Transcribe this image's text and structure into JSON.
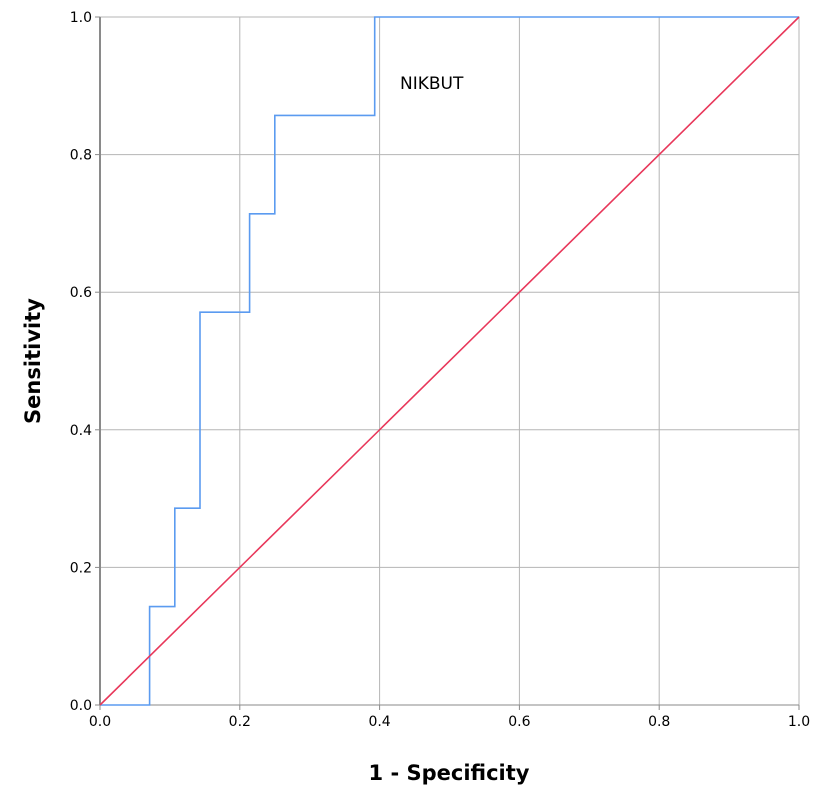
{
  "chart_data": {
    "type": "line",
    "title": "",
    "xlabel": "1 - Specificity",
    "ylabel": "Sensitivity",
    "xlim": [
      0,
      1
    ],
    "ylim": [
      0,
      1
    ],
    "xticks": [
      "0.0",
      "0.2",
      "0.4",
      "0.6",
      "0.8",
      "1.0"
    ],
    "yticks": [
      "0.0",
      "0.2",
      "0.4",
      "0.6",
      "0.8",
      "1.0"
    ],
    "grid": true,
    "annotation": "NIKBUT",
    "series": [
      {
        "color": "#5b9bf0",
        "step": true,
        "x": [
          0,
          0.071,
          0.071,
          0.107,
          0.107,
          0.143,
          0.143,
          0.214,
          0.214,
          0.25,
          0.25,
          0.393,
          0.393,
          0.4,
          1.0
        ],
        "y": [
          0,
          0,
          0.143,
          0.143,
          0.286,
          0.286,
          0.571,
          0.571,
          0.714,
          0.714,
          0.857,
          0.857,
          1.0,
          1.0,
          1.0
        ]
      },
      {
        "color": "#e8375a",
        "x": [
          0,
          1
        ],
        "y": [
          0,
          1
        ]
      }
    ]
  }
}
